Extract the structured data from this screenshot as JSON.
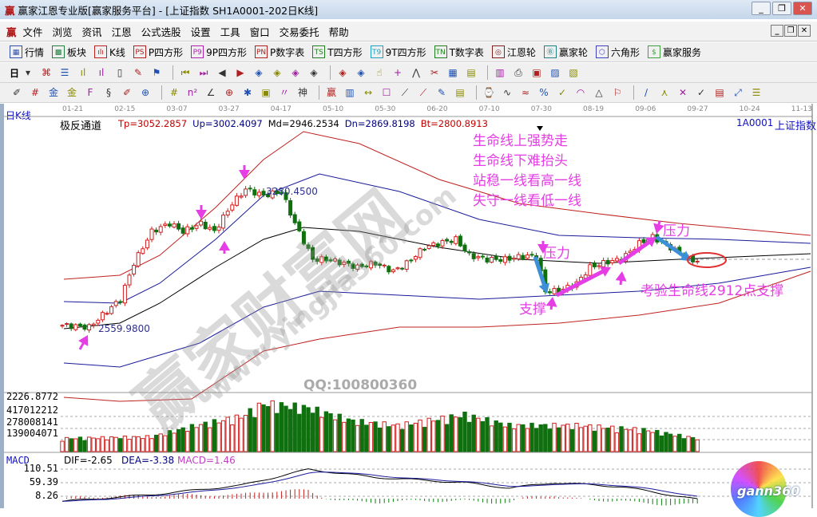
{
  "window": {
    "title": "赢家江恩专业版[赢家服务平台] - [上证指数  SH1A0001-202日K线]",
    "logo": "赢",
    "controls": [
      "_",
      "❐",
      "✕"
    ]
  },
  "menu": {
    "logo": "赢",
    "items": [
      "文件",
      "浏览",
      "资讯",
      "江恩",
      "公式选股",
      "设置",
      "工具",
      "窗口",
      "交易委托",
      "帮助"
    ],
    "mdi_controls": [
      "_",
      "❐",
      "✕"
    ]
  },
  "toolbar1": [
    {
      "icon": "quote-table-icon",
      "glyph": "▦",
      "label": "行情"
    },
    {
      "icon": "sector-icon",
      "glyph": "▩",
      "label": "板块"
    },
    {
      "icon": "kline-icon",
      "glyph": "ılı",
      "label": "K线"
    },
    {
      "icon": "ps-icon",
      "glyph": "PS",
      "label": "P四方形"
    },
    {
      "icon": "p9-icon",
      "glyph": "P9",
      "label": "9P四方形"
    },
    {
      "icon": "pn-icon",
      "glyph": "PN",
      "label": "P数字表"
    },
    {
      "icon": "ts-icon",
      "glyph": "TS",
      "label": "T四方形"
    },
    {
      "icon": "t9-icon",
      "glyph": "T9",
      "label": "9T四方形"
    },
    {
      "icon": "tn-icon",
      "glyph": "TN",
      "label": "T数字表"
    },
    {
      "icon": "gann-wheel-icon",
      "glyph": "◎",
      "label": "江恩轮"
    },
    {
      "icon": "winner-wheel-icon",
      "glyph": "Ⓑ",
      "label": "赢家轮"
    },
    {
      "icon": "hexagon-icon",
      "glyph": "⬡",
      "label": "六角形"
    },
    {
      "icon": "dollar-icon",
      "glyph": "$",
      "label": "赢家服务"
    }
  ],
  "toolbar2": {
    "period": "日",
    "icons": [
      [
        "day-period-dropdown",
        "▾"
      ],
      [
        "map-icon",
        "⌘"
      ],
      [
        "note-icon",
        "☰"
      ],
      [
        "chart3-icon",
        "ıl"
      ],
      [
        "chart9-icon",
        "ıl"
      ],
      [
        "candle-type-dropdown",
        "▯"
      ],
      [
        "drawing-icon",
        "✎"
      ],
      [
        "flag-icon",
        "⚑"
      ],
      [
        "first-icon",
        "⏮"
      ],
      [
        "last-icon",
        "⏭"
      ],
      [
        "left-icon",
        "◀"
      ],
      [
        "right-icon",
        "▶"
      ],
      [
        "zoom-left-icon",
        "◈"
      ],
      [
        "zoom-right-icon",
        "◈"
      ],
      [
        "expand-h-icon",
        "◈"
      ],
      [
        "shrink-h-icon",
        "◈"
      ],
      [
        "expand-icon",
        "◈"
      ],
      [
        "expand-v-icon",
        "◈"
      ],
      [
        "hand-icon",
        "☝"
      ],
      [
        "crosshair-icon",
        "+"
      ],
      [
        "line-icon",
        "⋀"
      ],
      [
        "cut-icon",
        "✂"
      ],
      [
        "calendar-icon",
        "▦"
      ],
      [
        "calc-icon",
        "▤"
      ],
      [
        "grid-icon",
        "▥"
      ],
      [
        "print-icon",
        "⎙"
      ],
      [
        "save-icon",
        "▣"
      ],
      [
        "image-icon",
        "▨"
      ],
      [
        "cam-icon",
        "▧"
      ]
    ]
  },
  "toolbar3": {
    "icons": [
      [
        "pen-icon",
        "✐"
      ],
      [
        "hash-icon",
        "#"
      ],
      [
        "gold-icon",
        "金"
      ],
      [
        "gold2-icon",
        "金"
      ],
      [
        "f-icon",
        "F"
      ],
      [
        "spiral-icon",
        "§"
      ],
      [
        "pen2-icon",
        "✐"
      ],
      [
        "circle-icon",
        "⊕"
      ],
      [
        "hash2-icon",
        "#"
      ],
      [
        "n2-icon",
        "n²"
      ],
      [
        "angle-icon",
        "∠"
      ],
      [
        "target-icon",
        "⊕"
      ],
      [
        "star-icon",
        "✱"
      ],
      [
        "square-icon",
        "▣"
      ],
      [
        "quote-icon",
        "〃"
      ],
      [
        "shen-icon",
        "神"
      ],
      [
        "ying-icon",
        "赢"
      ],
      [
        "ruler-icon",
        "▥"
      ],
      [
        "width-icon",
        "↔"
      ],
      [
        "box-icon",
        "☐"
      ],
      [
        "fan-icon",
        "⟋"
      ],
      [
        "fan2-icon",
        "⟋"
      ],
      [
        "pin-icon",
        "✎"
      ],
      [
        "chart-icon",
        "▤"
      ],
      [
        "time-icon",
        "⌚"
      ],
      [
        "cycle-icon",
        "∿"
      ],
      [
        "wave-icon",
        "≈"
      ],
      [
        "percent-icon",
        "%"
      ],
      [
        "ratio-icon",
        "✓"
      ],
      [
        "arc-icon",
        "◠"
      ],
      [
        "up-icon",
        "△"
      ],
      [
        "flag-icon",
        "⚐"
      ],
      [
        "frac-icon",
        "∕"
      ],
      [
        "cone-icon",
        "⋏"
      ],
      [
        "x-icon",
        "✕"
      ],
      [
        "mark-icon",
        "✓"
      ],
      [
        "sheet-icon",
        "▤"
      ],
      [
        "arrow-icon",
        "⤢"
      ],
      [
        "list-icon",
        "☰"
      ]
    ]
  },
  "chart": {
    "period_label": "日K线",
    "dates": [
      "01-21",
      "02-15",
      "03-07",
      "03-27",
      "04-17",
      "05-10",
      "05-30",
      "06-20",
      "07-10",
      "07-30",
      "08-19",
      "09-06",
      "09-27",
      "10-24",
      "11-13"
    ],
    "indicator_name": "极反通道",
    "indicator_values": [
      {
        "text": "Tp=3052.2857",
        "color": "#c00000"
      },
      {
        "text": "Up=3002.4097",
        "color": "#000080"
      },
      {
        "text": "Md=2946.2534",
        "color": "#000000"
      },
      {
        "text": "Dn=2869.8198",
        "color": "#000080"
      },
      {
        "text": "Bt=2800.8913",
        "color": "#c00000"
      }
    ],
    "code": "1A0001",
    "name": "上证指数",
    "high_label": "3280.4500",
    "low_label": "2559.9800",
    "volume_axis": [
      "2226.8772",
      "417012212",
      "278008141",
      "139004071"
    ],
    "macd": {
      "title": "MACD",
      "dif": "DIF=-2.65",
      "dea": "DEA=-3.38",
      "macd": "MACD=1.46",
      "axis": [
        "110.51",
        "59.39",
        "8.26"
      ]
    },
    "annotations": {
      "lines": [
        "生命线上强势走",
        "生命线下难抬头",
        "站稳一线看高一线",
        "失守一线看低一线"
      ],
      "pressure1": "压力",
      "pressure2": "压力",
      "support": "支撑",
      "test": "考验生命线2912点支撑"
    },
    "watermarks": {
      "big": "赢家财富网",
      "url": "www.yingjia360.com",
      "qq": "QQ:100800360",
      "logo": "gann360"
    },
    "colors": {
      "up": "#d02020",
      "down": "#107010",
      "annotation": "#e43ee4",
      "arrow_blue": "#3d8fd8"
    }
  },
  "chart_data": {
    "type": "candlestick",
    "close_keypoints": [
      [
        1,
        2568
      ],
      [
        6,
        2560
      ],
      [
        9,
        2623
      ],
      [
        13,
        2706
      ],
      [
        16,
        2894
      ],
      [
        20,
        3060
      ],
      [
        24,
        3102
      ],
      [
        27,
        3060
      ],
      [
        31,
        3102
      ],
      [
        34,
        3060
      ],
      [
        38,
        3206
      ],
      [
        41,
        3281
      ],
      [
        45,
        3248
      ],
      [
        49,
        3269
      ],
      [
        52,
        3102
      ],
      [
        56,
        2914
      ],
      [
        59,
        2914
      ],
      [
        63,
        2894
      ],
      [
        66,
        2873
      ],
      [
        70,
        2894
      ],
      [
        74,
        2852
      ],
      [
        77,
        2894
      ],
      [
        81,
        2977
      ],
      [
        84,
        2998
      ],
      [
        88,
        3019
      ],
      [
        91,
        2935
      ],
      [
        95,
        2914
      ],
      [
        99,
        2914
      ],
      [
        102,
        2927
      ],
      [
        106,
        2935
      ],
      [
        108,
        2748
      ],
      [
        111,
        2748
      ],
      [
        115,
        2789
      ],
      [
        118,
        2873
      ],
      [
        122,
        2902
      ],
      [
        125,
        2914
      ],
      [
        129,
        2998
      ],
      [
        132,
        3031
      ],
      [
        136,
        2977
      ],
      [
        140,
        2914
      ],
      [
        142,
        2906
      ]
    ],
    "volume_keypoints_millions": [
      [
        0,
        150
      ],
      [
        20,
        170
      ],
      [
        30,
        300
      ],
      [
        40,
        400
      ],
      [
        45,
        550
      ],
      [
        55,
        500
      ],
      [
        65,
        350
      ],
      [
        75,
        300
      ],
      [
        90,
        420
      ],
      [
        100,
        300
      ],
      [
        115,
        300
      ],
      [
        130,
        250
      ],
      [
        142,
        150
      ]
    ],
    "dif_keypoints": [
      [
        0,
        -10
      ],
      [
        20,
        15
      ],
      [
        40,
        50
      ],
      [
        55,
        110
      ],
      [
        70,
        80
      ],
      [
        90,
        60
      ],
      [
        100,
        40
      ],
      [
        110,
        60
      ],
      [
        125,
        45
      ],
      [
        142,
        -3
      ]
    ]
  }
}
